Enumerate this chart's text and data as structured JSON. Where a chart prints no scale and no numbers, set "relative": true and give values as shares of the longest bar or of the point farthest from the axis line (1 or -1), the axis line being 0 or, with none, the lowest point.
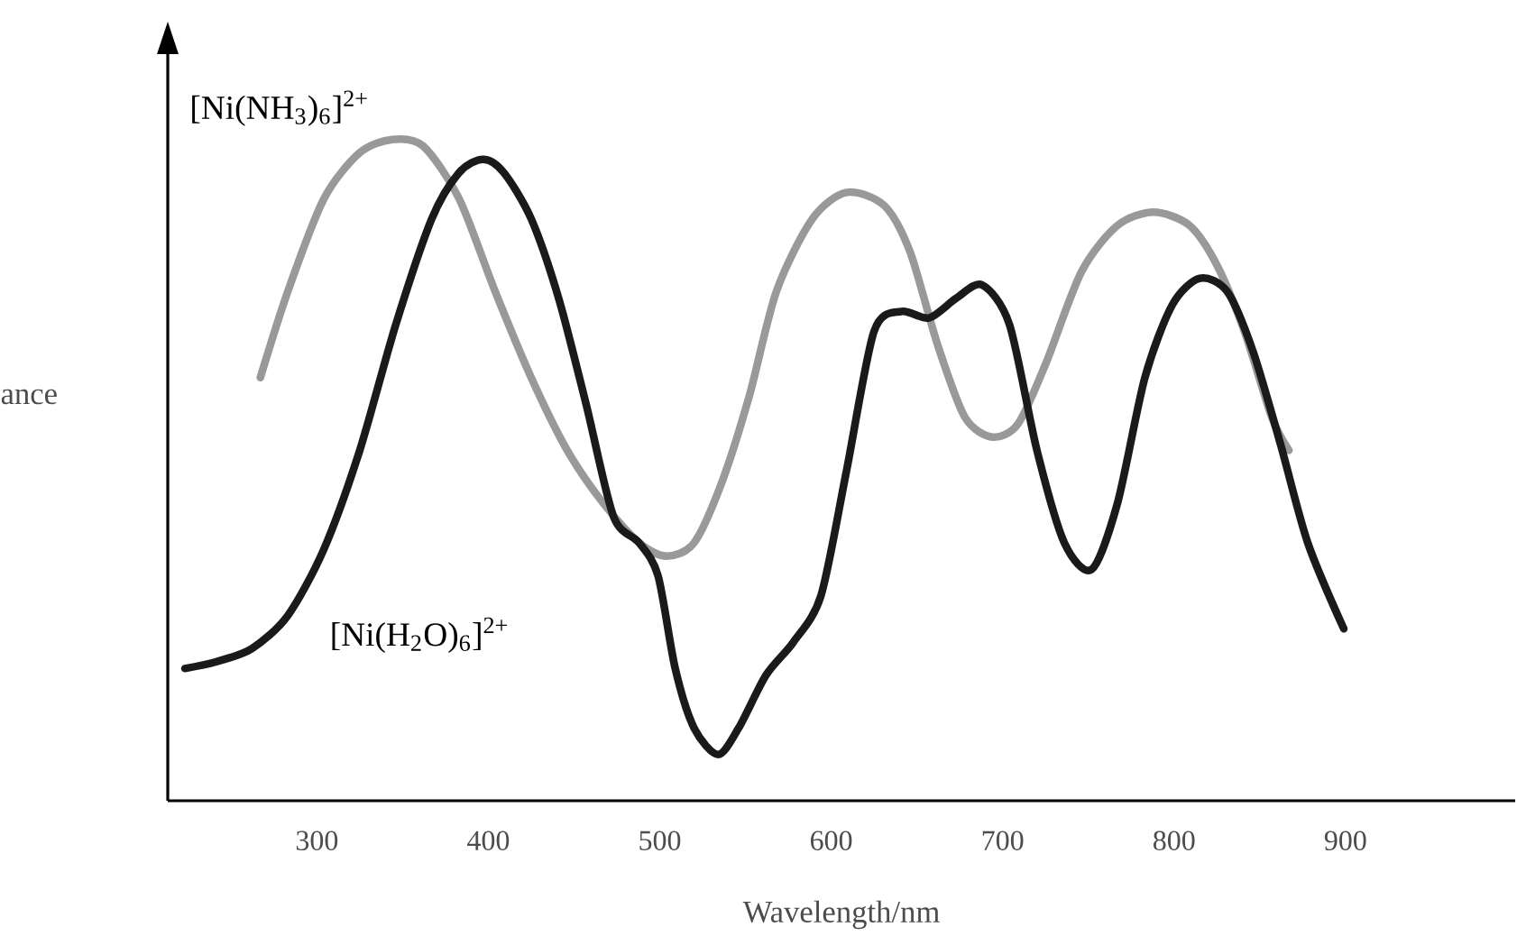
{
  "chart_data": {
    "type": "line",
    "xlabel": "Wavelength/nm",
    "ylabel": "ance",
    "relative": true,
    "xlim": [
      213,
      999
    ],
    "xticks": [
      300,
      400,
      500,
      600,
      700,
      800,
      900
    ],
    "marker": "none",
    "line_style": "solid",
    "series": [
      {
        "name": "[Ni(NH$_{3}$)$_{6}$]$^{2+}$",
        "color": "#999999",
        "x": [
          267,
          283,
          304,
          325,
          344,
          362,
          383,
          404,
          425,
          446,
          467,
          488,
          504,
          520,
          536,
          552,
          568,
          589,
          609,
          631,
          646,
          662,
          678,
          694,
          709,
          725,
          746,
          767,
          788,
          809,
          825,
          841,
          857,
          867
        ],
        "values": [
          0.64,
          0.77,
          0.91,
          0.98,
          1.0,
          0.99,
          0.91,
          0.77,
          0.64,
          0.53,
          0.45,
          0.39,
          0.37,
          0.39,
          0.48,
          0.61,
          0.77,
          0.88,
          0.92,
          0.9,
          0.83,
          0.69,
          0.58,
          0.55,
          0.57,
          0.66,
          0.8,
          0.87,
          0.89,
          0.87,
          0.81,
          0.71,
          0.58,
          0.53
        ]
      },
      {
        "name": "[Ni(H$_{2}$O)$_{6}$]$^{2+}$",
        "color": "#1a1a1a",
        "x": [
          223,
          241,
          262,
          283,
          304,
          325,
          346,
          367,
          383,
          397,
          409,
          425,
          441,
          457,
          473,
          488,
          499,
          509,
          520,
          534,
          546,
          562,
          578,
          594,
          609,
          625,
          641,
          657,
          673,
          688,
          704,
          720,
          736,
          752,
          767,
          783,
          799,
          815,
          831,
          846,
          862,
          878,
          899
        ],
        "values": [
          0.2,
          0.21,
          0.23,
          0.28,
          0.38,
          0.53,
          0.72,
          0.88,
          0.95,
          0.97,
          0.95,
          0.88,
          0.76,
          0.6,
          0.43,
          0.39,
          0.34,
          0.2,
          0.11,
          0.07,
          0.11,
          0.19,
          0.24,
          0.31,
          0.5,
          0.71,
          0.74,
          0.73,
          0.76,
          0.78,
          0.72,
          0.53,
          0.39,
          0.35,
          0.45,
          0.64,
          0.75,
          0.79,
          0.77,
          0.68,
          0.54,
          0.39,
          0.26
        ]
      }
    ]
  }
}
